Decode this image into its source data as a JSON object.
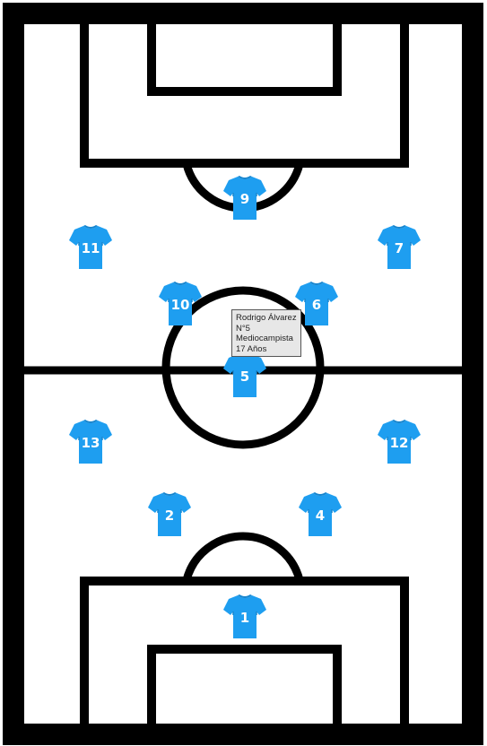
{
  "pitch": {
    "line_color": "#000000",
    "field_color": "#ffffff"
  },
  "jersey": {
    "color": "#1e9ef0",
    "shadow": "#1585cf",
    "number_color": "#ffffff",
    "icon": "shirt-icon"
  },
  "players": [
    {
      "number": "9"
    },
    {
      "number": "11"
    },
    {
      "number": "7"
    },
    {
      "number": "10"
    },
    {
      "number": "6"
    },
    {
      "number": "5"
    },
    {
      "number": "13"
    },
    {
      "number": "12"
    },
    {
      "number": "2"
    },
    {
      "number": "4"
    },
    {
      "number": "1"
    }
  ],
  "tooltip": {
    "name": "Rodrigo Álvarez",
    "number": "N°5",
    "position": "Mediocampista",
    "age": "17 Años"
  }
}
